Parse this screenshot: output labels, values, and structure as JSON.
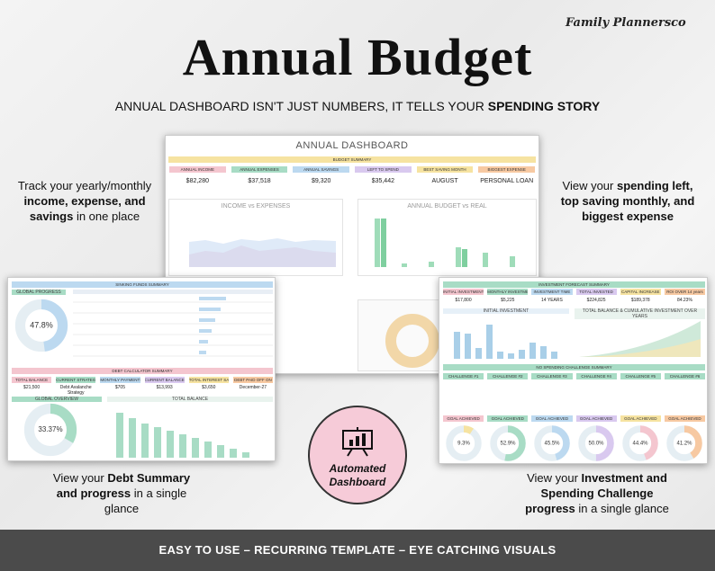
{
  "brand": "Family Plannersco",
  "title": "Annual Budget",
  "subtitle": {
    "text": "ANNUAL DASHBOARD ISN'T JUST NUMBERS, IT TELLS YOUR",
    "emphasis": "SPENDING STORY"
  },
  "callouts": {
    "top_left": [
      "Track your yearly/monthly",
      "income, expense, and",
      "savings",
      "in one place"
    ],
    "top_right": [
      "View your",
      "spending left,",
      "top saving monthly, and",
      "biggest expense"
    ],
    "bottom_left": [
      "View your",
      "Debt Summary",
      "and progress",
      "in a single",
      "glance"
    ],
    "bottom_right": [
      "View your",
      "Investment and",
      "Spending Challenge",
      "progress",
      "in a single glance"
    ]
  },
  "dashboard": {
    "title": "ANNUAL DASHBOARD",
    "summary_title": "BUDGET SUMMARY",
    "cards": [
      {
        "label": "ANNUAL INCOME",
        "value": "$82,280"
      },
      {
        "label": "ANNUAL EXPENSES",
        "value": "$37,518"
      },
      {
        "label": "ANNUAL SAVINGS",
        "value": "$9,320"
      },
      {
        "label": "LEFT TO SPEND",
        "value": "$35,442"
      },
      {
        "label": "BEST SAVING MONTH",
        "value": "AUGUST"
      },
      {
        "label": "BIGGEST EXPENSE",
        "value": "PERSONAL LOAN"
      }
    ],
    "charts": [
      "INCOME vs EXPENSES",
      "ANNUAL BUDGET vs REAL"
    ]
  },
  "debt_panel": {
    "progress": {
      "label": "GLOBAL PROGRESS",
      "value": 47.8,
      "value_label": "47.8%"
    },
    "funds_title": "SINKING FUNDS SUMMARY",
    "debt_title": "DEBT CALCULATOR SUMMARY",
    "cards": [
      {
        "label": "TOTAL BALANCE",
        "value": "$21,500"
      },
      {
        "label": "CURRENT STRATEGY",
        "value": "Debt Avalanche Strategy"
      },
      {
        "label": "MONTHLY PAYMENTS",
        "value": "$705"
      },
      {
        "label": "CURRENT BALANCE",
        "value": "$13,993"
      },
      {
        "label": "TOTAL INTEREST SAVED",
        "value": "$3,650"
      },
      {
        "label": "DEBT PAID OFF ON",
        "value": "December-27"
      }
    ],
    "overview": {
      "label": "GLOBAL OVERVIEW",
      "value": 33.37,
      "value_label": "33.37%"
    },
    "chart_title": "TOTAL BALANCE"
  },
  "investment_panel": {
    "title": "INVESTMENT FORECAST SUMMARY",
    "cards": [
      {
        "label": "INITIAL INVESTMENT",
        "value": "$17,800"
      },
      {
        "label": "MONTHLY INVESTMENT",
        "value": "$5,225"
      },
      {
        "label": "INVESTMENT TIME",
        "value": "14 YEARS"
      },
      {
        "label": "TOTAL INVESTED",
        "value": "$224,825"
      },
      {
        "label": "CAPITAL INCREASE",
        "value": "$189,378"
      },
      {
        "label": "ROI OVER 14 years",
        "value": "84.23%"
      }
    ],
    "chart_titles": [
      "INITIAL INVESTMENT",
      "TOTAL BALANCE & CUMULATIVE INVESTMENT OVER YEARS"
    ],
    "challenge_title": "NO SPENDING CHALLENGE SUMMARY",
    "challenges": [
      {
        "label": "CHALLENGE #1",
        "value": 9.3,
        "value_label": "9.3%"
      },
      {
        "label": "CHALLENGE #2",
        "value": 52.9,
        "value_label": "52.9%"
      },
      {
        "label": "CHALLENGE #3",
        "value": 45.5,
        "value_label": "45.5%"
      },
      {
        "label": "CHALLENGE #4",
        "value": 50.0,
        "value_label": "50.0%"
      },
      {
        "label": "CHALLENGE #5",
        "value": 44.4,
        "value_label": "44.4%"
      },
      {
        "label": "CHALLENGE #6",
        "value": 41.2,
        "value_label": "41.2%"
      }
    ],
    "goal_label": "GOAL ACHIEVED"
  },
  "badge": [
    "Automated",
    "Dashboard"
  ],
  "banner": "EASY TO USE – RECURRING TEMPLATE – EYE CATCHING VISUALS"
}
